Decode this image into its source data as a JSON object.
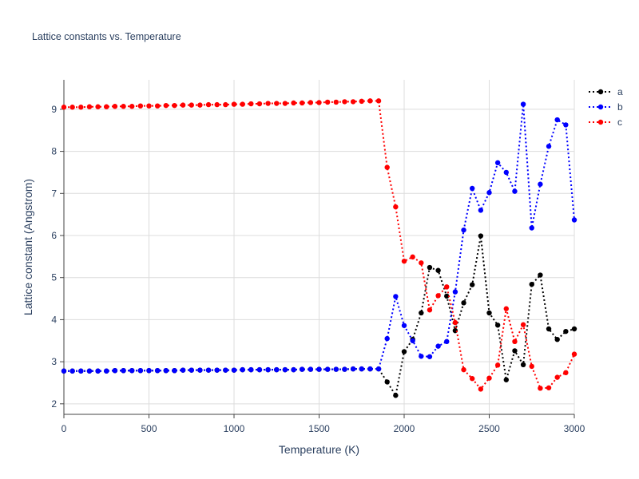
{
  "chart_data": {
    "type": "line",
    "title": "Lattice constants vs. Temperature",
    "xlabel": "Temperature (K)",
    "ylabel": "Lattice constant (Angstrom)",
    "xlim": [
      0,
      3000
    ],
    "ylim": [
      1.75,
      9.7
    ],
    "xticks": [
      0,
      500,
      1000,
      1500,
      2000,
      2500,
      3000
    ],
    "yticks": [
      2,
      3,
      4,
      5,
      6,
      7,
      8,
      9
    ],
    "grid": true,
    "legend_position": "top-right",
    "line_style": "dotted",
    "marker": "circle",
    "x": [
      0,
      50,
      100,
      150,
      200,
      250,
      300,
      350,
      400,
      450,
      500,
      550,
      600,
      650,
      700,
      750,
      800,
      850,
      900,
      950,
      1000,
      1050,
      1100,
      1150,
      1200,
      1250,
      1300,
      1350,
      1400,
      1450,
      1500,
      1550,
      1600,
      1650,
      1700,
      1750,
      1800,
      1850,
      1900,
      1950,
      2000,
      2050,
      2100,
      2150,
      2200,
      2250,
      2300,
      2350,
      2400,
      2450,
      2500,
      2550,
      2600,
      2650,
      2700,
      2750,
      2800,
      2850,
      2900,
      2950,
      3000
    ],
    "series": [
      {
        "name": "a",
        "color": "#000000",
        "values": [
          2.78,
          2.78,
          2.78,
          2.78,
          2.78,
          2.78,
          2.79,
          2.79,
          2.79,
          2.79,
          2.79,
          2.79,
          2.79,
          2.79,
          2.8,
          2.8,
          2.8,
          2.8,
          2.8,
          2.8,
          2.8,
          2.81,
          2.81,
          2.81,
          2.81,
          2.81,
          2.81,
          2.81,
          2.82,
          2.82,
          2.82,
          2.82,
          2.82,
          2.82,
          2.83,
          2.83,
          2.83,
          2.83,
          2.52,
          2.2,
          3.24,
          3.53,
          4.16,
          5.24,
          5.17,
          4.56,
          3.74,
          4.4,
          4.83,
          5.99,
          4.16,
          3.87,
          2.57,
          3.26,
          2.93,
          4.84,
          5.06,
          3.78,
          3.53,
          3.72,
          3.78
        ]
      },
      {
        "name": "b",
        "color": "#0000ff",
        "values": [
          2.78,
          2.78,
          2.78,
          2.78,
          2.78,
          2.78,
          2.79,
          2.79,
          2.79,
          2.79,
          2.79,
          2.79,
          2.79,
          2.79,
          2.8,
          2.8,
          2.8,
          2.8,
          2.8,
          2.8,
          2.8,
          2.81,
          2.81,
          2.81,
          2.81,
          2.81,
          2.81,
          2.81,
          2.82,
          2.82,
          2.82,
          2.82,
          2.82,
          2.82,
          2.83,
          2.83,
          2.83,
          2.83,
          3.55,
          4.55,
          3.86,
          3.5,
          3.13,
          3.12,
          3.37,
          3.48,
          4.66,
          6.13,
          7.12,
          6.6,
          7.02,
          7.73,
          7.5,
          7.05,
          9.12,
          6.18,
          7.22,
          8.12,
          8.75,
          8.63,
          6.37
        ]
      },
      {
        "name": "c",
        "color": "#ff0000",
        "values": [
          9.05,
          9.05,
          9.05,
          9.06,
          9.06,
          9.06,
          9.07,
          9.07,
          9.07,
          9.08,
          9.08,
          9.08,
          9.09,
          9.09,
          9.1,
          9.1,
          9.1,
          9.11,
          9.11,
          9.11,
          9.12,
          9.12,
          9.13,
          9.13,
          9.14,
          9.14,
          9.14,
          9.15,
          9.15,
          9.16,
          9.16,
          9.17,
          9.17,
          9.18,
          9.18,
          9.19,
          9.2,
          9.2,
          7.62,
          6.68,
          5.39,
          5.49,
          5.35,
          4.23,
          4.57,
          4.78,
          3.93,
          2.81,
          2.6,
          2.35,
          2.61,
          2.92,
          4.26,
          3.48,
          3.88,
          2.89,
          2.37,
          2.38,
          2.63,
          2.74,
          3.18
        ]
      }
    ]
  }
}
